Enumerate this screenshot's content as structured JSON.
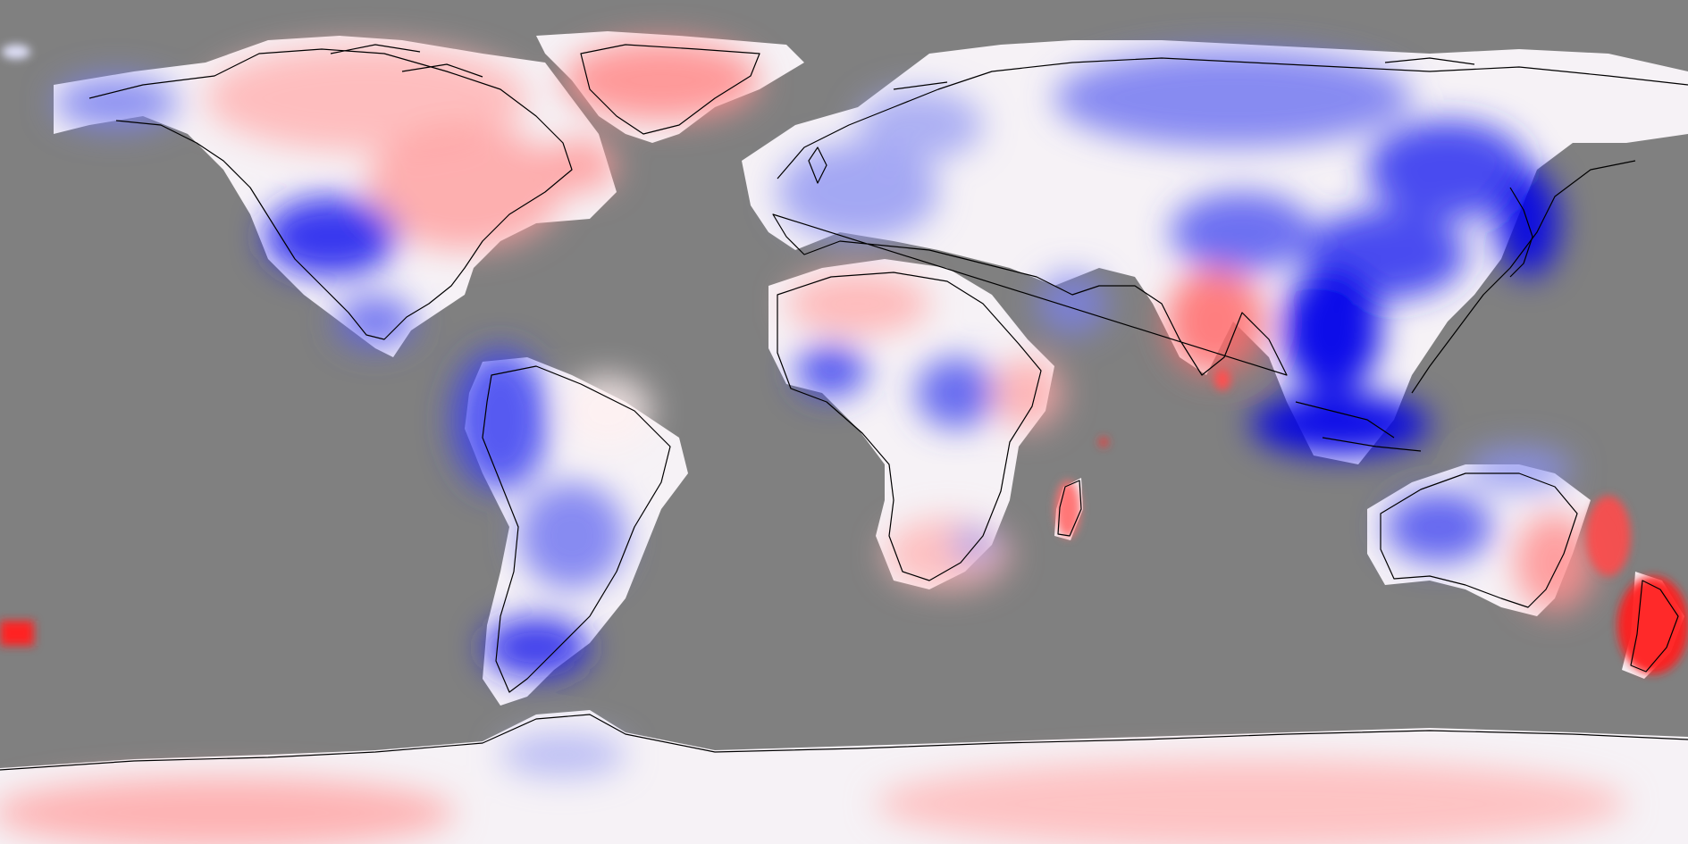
{
  "map": {
    "projection": "equirectangular",
    "background_color": "#808080",
    "coastline_color": "#000000",
    "colorscale": {
      "negative": "#0000ee",
      "neutral": "#ffffff",
      "positive": "#ff0000"
    },
    "labels_present": false
  }
}
